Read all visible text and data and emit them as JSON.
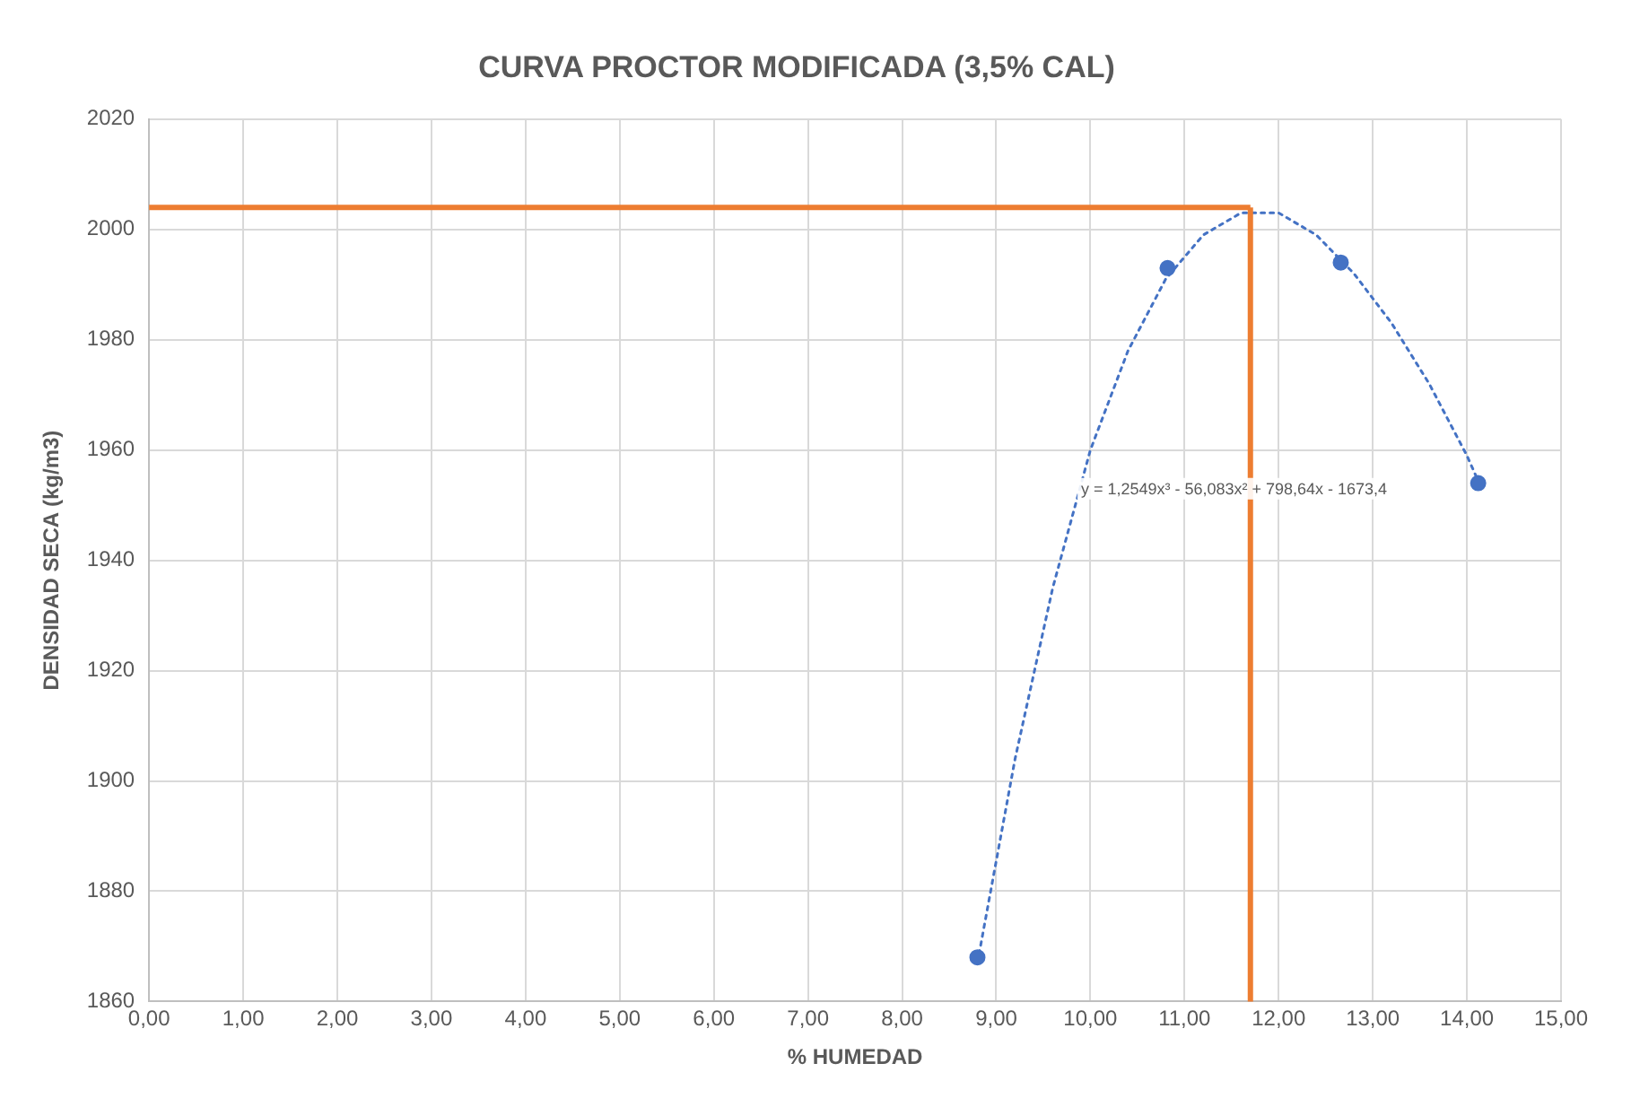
{
  "chart_data": {
    "type": "scatter",
    "title": "CURVA PROCTOR MODIFICADA (3,5% CAL)",
    "xlabel": "% HUMEDAD",
    "ylabel": "DENSIDAD SECA (kg/m3)",
    "xlim": [
      0,
      15
    ],
    "ylim": [
      1860,
      2020
    ],
    "xticks": [
      {
        "value": 0,
        "label": "0,00"
      },
      {
        "value": 1,
        "label": "1,00"
      },
      {
        "value": 2,
        "label": "2,00"
      },
      {
        "value": 3,
        "label": "3,00"
      },
      {
        "value": 4,
        "label": "4,00"
      },
      {
        "value": 5,
        "label": "5,00"
      },
      {
        "value": 6,
        "label": "6,00"
      },
      {
        "value": 7,
        "label": "7,00"
      },
      {
        "value": 8,
        "label": "8,00"
      },
      {
        "value": 9,
        "label": "9,00"
      },
      {
        "value": 10,
        "label": "10,00"
      },
      {
        "value": 11,
        "label": "11,00"
      },
      {
        "value": 12,
        "label": "12,00"
      },
      {
        "value": 13,
        "label": "13,00"
      },
      {
        "value": 14,
        "label": "14,00"
      },
      {
        "value": 15,
        "label": "15,00"
      }
    ],
    "yticks": [
      1860,
      1880,
      1900,
      1920,
      1940,
      1960,
      1980,
      2000,
      2020
    ],
    "grid": true,
    "legend": false,
    "series": [
      {
        "color": "#4472c4",
        "marker": "circle",
        "x": [
          8.8,
          10.82,
          12.66,
          14.12
        ],
        "values": [
          1868,
          1993,
          1994,
          1954
        ]
      },
      {
        "type": "line",
        "color": "#4472c4",
        "marker": "none",
        "line_style": "dotted",
        "x": [
          8.8,
          9.2,
          9.6,
          10,
          10.4,
          10.8,
          11.2,
          11.6,
          12,
          12.4,
          12.8,
          13.2,
          13.6,
          14,
          14.13
        ],
        "values": [
          1867,
          1904,
          1935,
          1960,
          1978,
          1991,
          1999,
          2003,
          2003,
          1999,
          1992,
          1983,
          1972,
          1959,
          1954
        ]
      }
    ],
    "ref_lines": [
      {
        "axis": "x",
        "value": 11.7,
        "color": "#ed7d31"
      },
      {
        "axis": "y",
        "value": 2004,
        "color": "#ed7d31"
      }
    ],
    "annotations": [
      "y = 1,2549x³ - 56,083x² + 798,64x - 1673,4"
    ]
  }
}
